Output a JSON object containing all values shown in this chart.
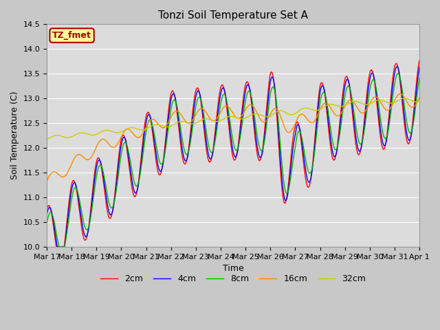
{
  "title": "Tonzi Soil Temperature Set A",
  "ylabel": "Soil Temperature (C)",
  "xlabel": "Time",
  "annotation": "TZ_fmet",
  "ylim": [
    10.0,
    14.5
  ],
  "xtick_labels": [
    "Mar 17",
    "Mar 18",
    "Mar 19",
    "Mar 20",
    "Mar 21",
    "Mar 22",
    "Mar 23",
    "Mar 24",
    "Mar 25",
    "Mar 26",
    "Mar 27",
    "Mar 28",
    "Mar 29",
    "Mar 30",
    "Mar 31",
    "Apr 1"
  ],
  "legend_labels": [
    "2cm",
    "4cm",
    "8cm",
    "16cm",
    "32cm"
  ],
  "line_colors": [
    "#ff0000",
    "#0000ff",
    "#00bb00",
    "#ff8800",
    "#cccc00"
  ],
  "bg_color": "#dcdcdc",
  "fig_bg_color": "#c8c8c8",
  "title_fontsize": 11,
  "axis_fontsize": 9,
  "tick_fontsize": 8,
  "legend_fontsize": 9,
  "annotation_fontsize": 9,
  "annotation_bg": "#ffff99",
  "annotation_border": "#aa0000",
  "annotation_text_color": "#aa0000",
  "lw": 1.0,
  "grid_color": "#ffffff",
  "n_points": 1500
}
